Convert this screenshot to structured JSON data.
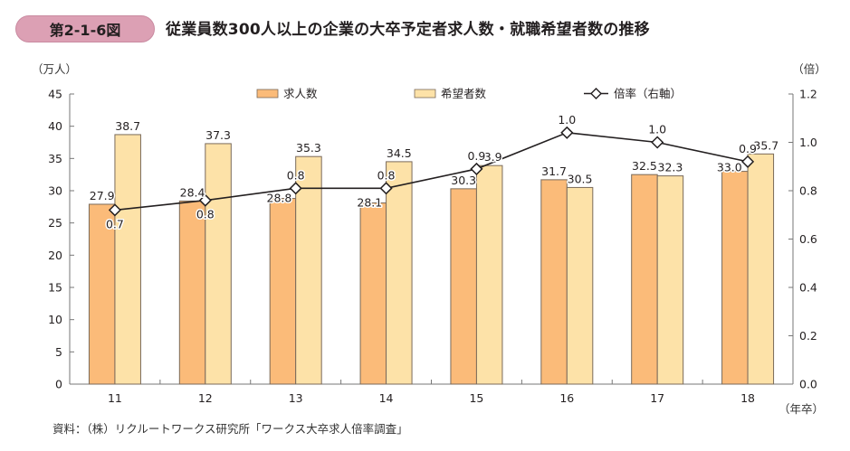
{
  "figure": {
    "number": "第2-1-6図",
    "title": "従業員数300人以上の企業の大卒予定者求人数・就職希望者数の推移",
    "source": "資料：（株）リクルートワークス研究所「ワークス大卒求人倍率調査」"
  },
  "colors": {
    "badge": "#dca0b4",
    "job_openings": "#fbbb79",
    "job_seekers": "#fde2a8",
    "bar_edge": "#7a6a5a",
    "line": "#231f20",
    "axis": "#777777"
  },
  "chart_data": {
    "type": "bar",
    "title": "従業員数300人以上の企業の大卒予定者求人数・就職希望者数の推移",
    "xlabel": "（年卒）",
    "ylabel": "（万人）",
    "y2label": "（倍）",
    "categories": [
      "11",
      "12",
      "13",
      "14",
      "15",
      "16",
      "17",
      "18"
    ],
    "ylim": [
      0,
      45
    ],
    "yticks": [
      "0",
      "5",
      "10",
      "15",
      "20",
      "25",
      "30",
      "35",
      "40",
      "45"
    ],
    "y2lim": [
      0,
      1.2
    ],
    "y2ticks": [
      "0.0",
      "0.2",
      "0.4",
      "0.6",
      "0.8",
      "1.0",
      "1.2"
    ],
    "grid": false,
    "legend_position": "top-center",
    "series": [
      {
        "name": "求人数",
        "type": "bar",
        "axis": "left",
        "values": [
          27.9,
          28.4,
          28.8,
          28.1,
          30.3,
          31.7,
          32.5,
          33.0
        ],
        "labels": [
          "27.9",
          "28.4",
          "28.8",
          "28.1",
          "30.3",
          "31.7",
          "32.5",
          "33.0"
        ]
      },
      {
        "name": "希望者数",
        "type": "bar",
        "axis": "left",
        "values": [
          38.7,
          37.3,
          35.3,
          34.5,
          33.9,
          30.5,
          32.3,
          35.7
        ],
        "labels": [
          "38.7",
          "37.3",
          "35.3",
          "34.5",
          "33.9",
          "30.5",
          "32.3",
          "35.7"
        ]
      },
      {
        "name": "倍率（右軸）",
        "type": "line",
        "axis": "right",
        "marker": "diamond",
        "values": [
          0.72,
          0.76,
          0.81,
          0.81,
          0.89,
          1.04,
          1.0,
          0.92
        ],
        "labels": [
          "0.7",
          "0.8",
          "0.8",
          "0.8",
          "0.9",
          "1.0",
          "1.0",
          "0.9"
        ]
      }
    ]
  }
}
